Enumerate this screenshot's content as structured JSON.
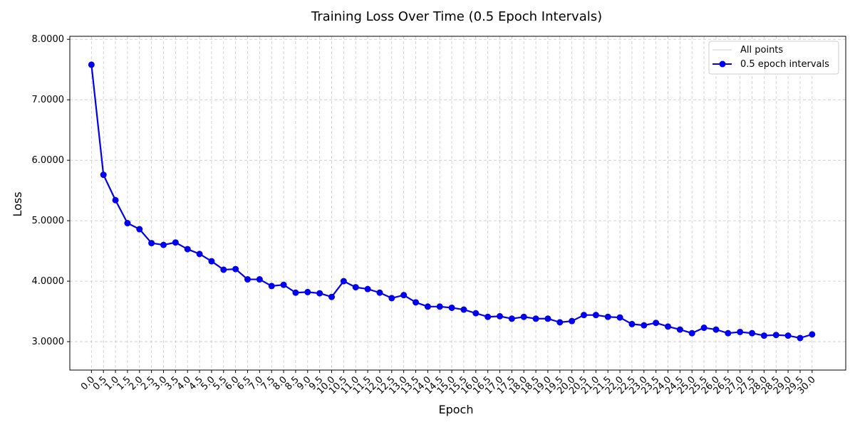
{
  "chart_data": {
    "type": "line",
    "title": "Training Loss Over Time (0.5 Epoch Intervals)",
    "xlabel": "Epoch",
    "ylabel": "Loss",
    "xlim": [
      -0.9,
      31.4
    ],
    "ylim": [
      2.53,
      8.05
    ],
    "grid": true,
    "legend_position": "top-right",
    "y_ticks": [
      "3.0000",
      "4.0000",
      "5.0000",
      "6.0000",
      "7.0000",
      "8.0000"
    ],
    "y_tick_values": [
      3,
      4,
      5,
      6,
      7,
      8
    ],
    "x": [
      0.0,
      0.5,
      1.0,
      1.5,
      2.0,
      2.5,
      3.0,
      3.5,
      4.0,
      4.5,
      5.0,
      5.5,
      6.0,
      6.5,
      7.0,
      7.5,
      8.0,
      8.5,
      9.0,
      9.5,
      10.0,
      10.5,
      11.0,
      11.5,
      12.0,
      12.5,
      13.0,
      13.5,
      14.0,
      14.5,
      15.0,
      15.5,
      16.0,
      16.5,
      17.0,
      17.5,
      18.0,
      18.5,
      19.0,
      19.5,
      20.0,
      20.5,
      21.0,
      21.5,
      22.0,
      22.5,
      23.0,
      23.5,
      24.0,
      24.5,
      25.0,
      25.5,
      26.0,
      26.5,
      27.0,
      27.5,
      28.0,
      28.5,
      29.0,
      29.5,
      30.0
    ],
    "x_tick_labels": [
      "0.0",
      "0.5",
      "1.0",
      "1.5",
      "2.0",
      "2.5",
      "3.0",
      "3.5",
      "4.0",
      "4.5",
      "5.0",
      "5.5",
      "6.0",
      "6.5",
      "7.0",
      "7.5",
      "8.0",
      "8.5",
      "9.0",
      "9.5",
      "10.0",
      "10.5",
      "11.0",
      "11.5",
      "12.0",
      "12.5",
      "13.0",
      "13.5",
      "14.0",
      "14.5",
      "15.0",
      "15.5",
      "16.0",
      "16.5",
      "17.0",
      "17.5",
      "18.0",
      "18.5",
      "19.0",
      "19.5",
      "20.0",
      "20.5",
      "21.0",
      "21.5",
      "22.0",
      "22.5",
      "23.0",
      "23.5",
      "24.0",
      "24.5",
      "25.0",
      "25.5",
      "26.0",
      "26.5",
      "27.0",
      "27.5",
      "28.0",
      "28.5",
      "29.0",
      "29.5",
      "30.0"
    ],
    "series": [
      {
        "name": "All points",
        "color": "#cccccc",
        "marker": "none",
        "values": [
          7.58,
          5.76,
          5.34,
          4.96,
          4.86,
          4.63,
          4.6,
          4.64,
          4.53,
          4.45,
          4.33,
          4.19,
          4.2,
          4.03,
          4.03,
          3.92,
          3.94,
          3.81,
          3.82,
          3.8,
          3.74,
          4.0,
          3.9,
          3.87,
          3.81,
          3.72,
          3.77,
          3.65,
          3.58,
          3.58,
          3.56,
          3.53,
          3.47,
          3.41,
          3.42,
          3.38,
          3.41,
          3.38,
          3.38,
          3.32,
          3.34,
          3.44,
          3.44,
          3.41,
          3.4,
          3.29,
          3.27,
          3.31,
          3.25,
          3.2,
          3.14,
          3.23,
          3.2,
          3.14,
          3.16,
          3.14,
          3.1,
          3.11,
          3.1,
          3.06,
          3.12
        ]
      },
      {
        "name": "0.5 epoch intervals",
        "color": "#0000ee",
        "marker": "circle",
        "values": [
          7.58,
          5.76,
          5.34,
          4.96,
          4.86,
          4.63,
          4.6,
          4.64,
          4.53,
          4.45,
          4.33,
          4.19,
          4.2,
          4.03,
          4.03,
          3.92,
          3.94,
          3.81,
          3.82,
          3.8,
          3.74,
          4.0,
          3.9,
          3.87,
          3.81,
          3.72,
          3.77,
          3.65,
          3.58,
          3.58,
          3.56,
          3.53,
          3.47,
          3.41,
          3.42,
          3.38,
          3.41,
          3.38,
          3.38,
          3.32,
          3.34,
          3.44,
          3.44,
          3.41,
          3.4,
          3.29,
          3.27,
          3.31,
          3.25,
          3.2,
          3.14,
          3.23,
          3.2,
          3.14,
          3.16,
          3.14,
          3.1,
          3.11,
          3.1,
          3.06,
          3.12
        ]
      }
    ]
  }
}
